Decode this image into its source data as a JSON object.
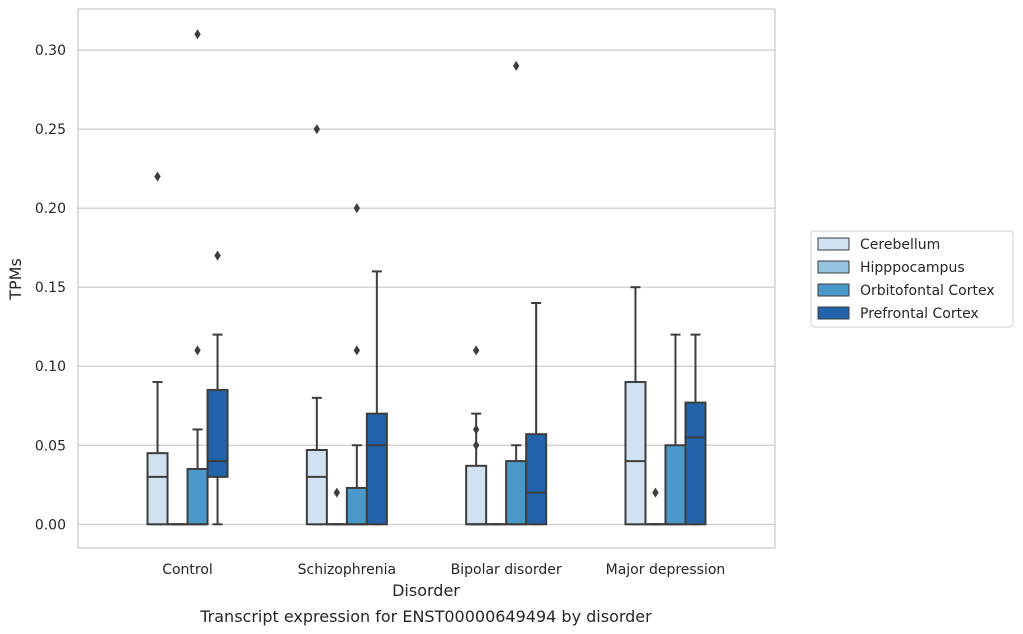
{
  "chart_data": {
    "type": "box",
    "title": "",
    "caption": "Transcript expression for ENST00000649494 by disorder",
    "xlabel": "Disorder",
    "ylabel": "TPMs",
    "ylim": [
      -0.015,
      0.326
    ],
    "yticks": [
      "0.00",
      "0.05",
      "0.10",
      "0.15",
      "0.20",
      "0.25",
      "0.30"
    ],
    "ytick_values": [
      0,
      0.05,
      0.1,
      0.15,
      0.2,
      0.25,
      0.3
    ],
    "grid": "horizontal",
    "legend_position": "right",
    "categories": [
      "Control",
      "Schizophrenia",
      "Bipolar disorder",
      "Major depression"
    ],
    "series": [
      {
        "name": "Cerebellum",
        "color": "#d0e1f2",
        "boxes": [
          {
            "q1": 0,
            "median": 0.03,
            "q3": 0.045,
            "whisker_low": 0,
            "whisker_high": 0.09,
            "outliers": [
              0.22
            ]
          },
          {
            "q1": 0,
            "median": 0.03,
            "q3": 0.047,
            "whisker_low": 0,
            "whisker_high": 0.08,
            "outliers": [
              0.25
            ]
          },
          {
            "q1": 0,
            "median": 0,
            "q3": 0.037,
            "whisker_low": 0,
            "whisker_high": 0.07,
            "outliers": [
              0.11,
              0.06,
              0.05
            ]
          },
          {
            "q1": 0,
            "median": 0.04,
            "q3": 0.09,
            "whisker_low": 0,
            "whisker_high": 0.15,
            "outliers": []
          }
        ]
      },
      {
        "name": "Hipppocampus",
        "color": "#94c4df",
        "boxes": [
          {
            "q1": 0,
            "median": 0,
            "q3": 0,
            "whisker_low": 0,
            "whisker_high": 0,
            "outliers": []
          },
          {
            "q1": 0,
            "median": 0,
            "q3": 0,
            "whisker_low": 0,
            "whisker_high": 0,
            "outliers": [
              0.02
            ]
          },
          {
            "q1": 0,
            "median": 0,
            "q3": 0,
            "whisker_low": 0,
            "whisker_high": 0,
            "outliers": []
          },
          {
            "q1": 0,
            "median": 0,
            "q3": 0,
            "whisker_low": 0,
            "whisker_high": 0,
            "outliers": [
              0.02
            ]
          }
        ]
      },
      {
        "name": "Orbitofontal Cortex",
        "color": "#4a98c9",
        "boxes": [
          {
            "q1": 0,
            "median": 0,
            "q3": 0.035,
            "whisker_low": 0,
            "whisker_high": 0.06,
            "outliers": [
              0.11,
              0.31
            ]
          },
          {
            "q1": 0,
            "median": 0,
            "q3": 0.023,
            "whisker_low": 0,
            "whisker_high": 0.05,
            "outliers": [
              0.11,
              0.2
            ]
          },
          {
            "q1": 0,
            "median": 0,
            "q3": 0.04,
            "whisker_low": 0,
            "whisker_high": 0.05,
            "outliers": [
              0.29
            ]
          },
          {
            "q1": 0,
            "median": 0,
            "q3": 0.05,
            "whisker_low": 0,
            "whisker_high": 0.12,
            "outliers": []
          }
        ]
      },
      {
        "name": "Prefrontal Cortex",
        "color": "#2164ab",
        "boxes": [
          {
            "q1": 0.03,
            "median": 0.04,
            "q3": 0.085,
            "whisker_low": 0,
            "whisker_high": 0.12,
            "outliers": [
              0.17
            ]
          },
          {
            "q1": 0,
            "median": 0.05,
            "q3": 0.07,
            "whisker_low": 0,
            "whisker_high": 0.16,
            "outliers": []
          },
          {
            "q1": 0,
            "median": 0.02,
            "q3": 0.057,
            "whisker_low": 0,
            "whisker_high": 0.14,
            "outliers": []
          },
          {
            "q1": 0,
            "median": 0.055,
            "q3": 0.077,
            "whisker_low": 0,
            "whisker_high": 0.12,
            "outliers": []
          }
        ]
      }
    ]
  }
}
